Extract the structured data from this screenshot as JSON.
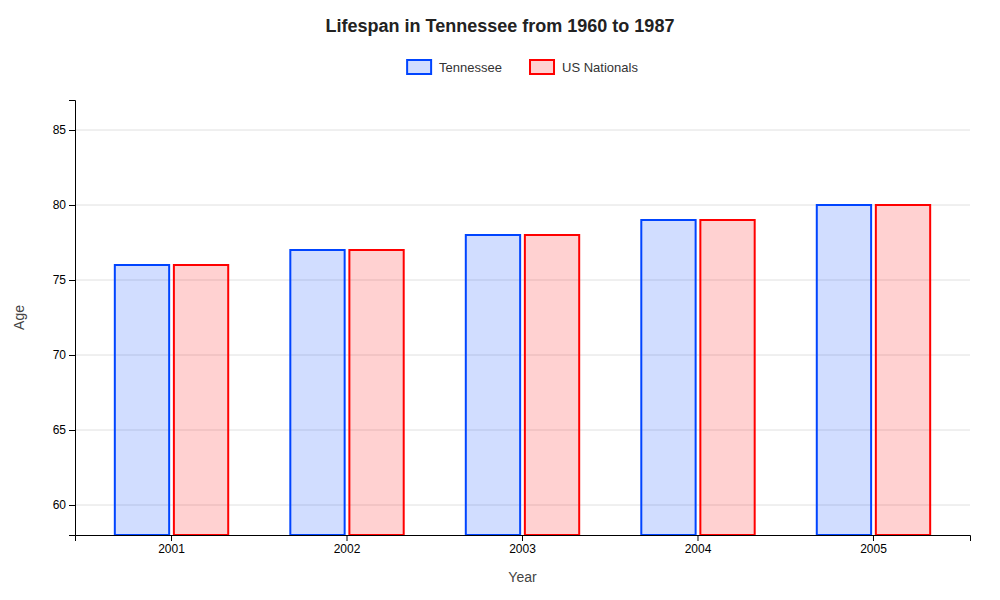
{
  "chart_data": {
    "type": "bar",
    "title": "Lifespan in Tennessee from 1960 to 1987",
    "xlabel": "Year",
    "ylabel": "Age",
    "categories": [
      "2001",
      "2002",
      "2003",
      "2004",
      "2005"
    ],
    "series": [
      {
        "name": "Tennessee",
        "color": "#0044ff",
        "values": [
          76,
          77,
          78,
          79,
          80
        ]
      },
      {
        "name": "US Nationals",
        "color": "#ff0000",
        "values": [
          76,
          77,
          78,
          79,
          80
        ]
      }
    ],
    "ylim": [
      58,
      87
    ],
    "yticks": [
      60,
      65,
      70,
      75,
      80,
      85
    ],
    "grid": true,
    "legend": "top"
  }
}
